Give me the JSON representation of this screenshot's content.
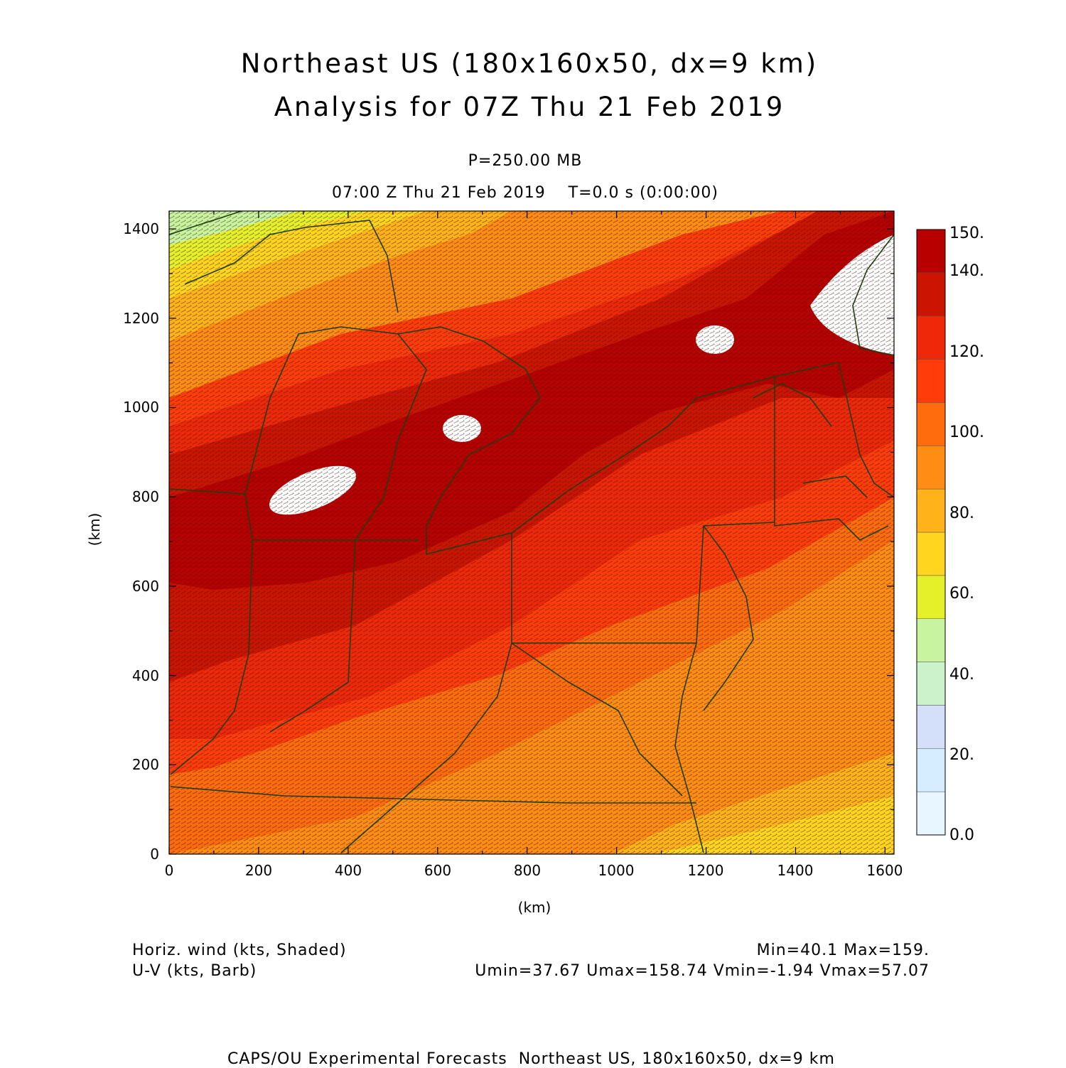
{
  "header": {
    "title_line1": "Northeast US (180x160x50, dx=9 km)",
    "title_line2": "Analysis for 07Z Thu 21 Feb 2019",
    "level": "P=250.00 MB",
    "time": "07:00 Z Thu 21 Feb 2019    T=0.0 s (0:00:00)"
  },
  "axes": {
    "xlabel": "(km)",
    "ylabel": "(km)",
    "xlim": [
      0,
      1620
    ],
    "ylim": [
      0,
      1440
    ],
    "xticks": [
      "0",
      "200",
      "400",
      "600",
      "800",
      "1000",
      "1200",
      "1400",
      "1600"
    ],
    "yticks": [
      "0",
      "200",
      "400",
      "600",
      "800",
      "1000",
      "1200",
      "1400"
    ]
  },
  "colorbar": {
    "labels": [
      "0.0",
      "20.",
      "40.",
      "60.",
      "80.",
      "100.",
      "120.",
      "140.",
      "150."
    ],
    "colors": [
      "#e8f6ff",
      "#d6ecff",
      "#d4e0fa",
      "#ccf2cc",
      "#c8f4a0",
      "#e6f02a",
      "#ffd520",
      "#ffb21a",
      "#ff8c14",
      "#ff6c0e",
      "#ff3c0a",
      "#ee2808",
      "#cc1402",
      "#b80000"
    ]
  },
  "field": {
    "name": "Horiz. wind (kts, Shaded)",
    "vector": "U-V (kts, Barb)",
    "min_max": "Min=40.1 Max=159.",
    "uv_range": "Umin=37.67 Umax=158.74 Vmin=-1.94 Vmax=57.07"
  },
  "footer": {
    "credit": "CAPS/OU Experimental Forecasts  Northeast US, 180x160x50, dx=9 km"
  }
}
